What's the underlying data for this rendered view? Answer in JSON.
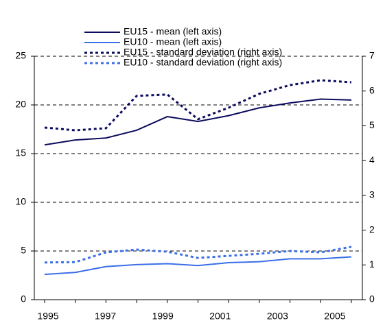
{
  "chart_data": {
    "type": "line",
    "categories": [
      "1995",
      null,
      "1997",
      null,
      "1999",
      null,
      "2001",
      null,
      "2003",
      null,
      "2005"
    ],
    "series": [
      {
        "name": "EU15 - mean (left axis)",
        "color": "#0b0b5e",
        "style": "solid",
        "values": [
          15.9,
          16.4,
          16.6,
          17.4,
          18.8,
          18.3,
          18.9,
          19.7,
          20.2,
          20.6,
          20.5
        ]
      },
      {
        "name": "EU10 - mean (left axis)",
        "color": "#3a6ee8",
        "style": "solid",
        "values": [
          2.6,
          2.8,
          3.4,
          3.6,
          3.7,
          3.5,
          3.8,
          3.9,
          4.2,
          4.2,
          4.4
        ]
      },
      {
        "name": "EU15 - standard deviation (right axis)",
        "color": "#0b0b5e",
        "style": "dotted",
        "axis": "y2",
        "values": [
          4.95,
          4.87,
          4.93,
          5.86,
          5.9,
          5.19,
          5.52,
          5.92,
          6.17,
          6.31,
          6.25
        ]
      },
      {
        "name": "EU10 - standard deviation (right axis)",
        "color": "#3a6ee8",
        "style": "dotted",
        "axis": "y2",
        "values": [
          1.07,
          1.08,
          1.36,
          1.44,
          1.38,
          1.2,
          1.26,
          1.32,
          1.4,
          1.36,
          1.52
        ]
      }
    ],
    "ylim": [
      0,
      25
    ],
    "yticks": [
      0,
      5,
      10,
      15,
      20,
      25
    ],
    "y2lim": [
      0,
      7
    ],
    "y2ticks": [
      0,
      1,
      2,
      3,
      4,
      5,
      6,
      7
    ],
    "grid": true
  }
}
